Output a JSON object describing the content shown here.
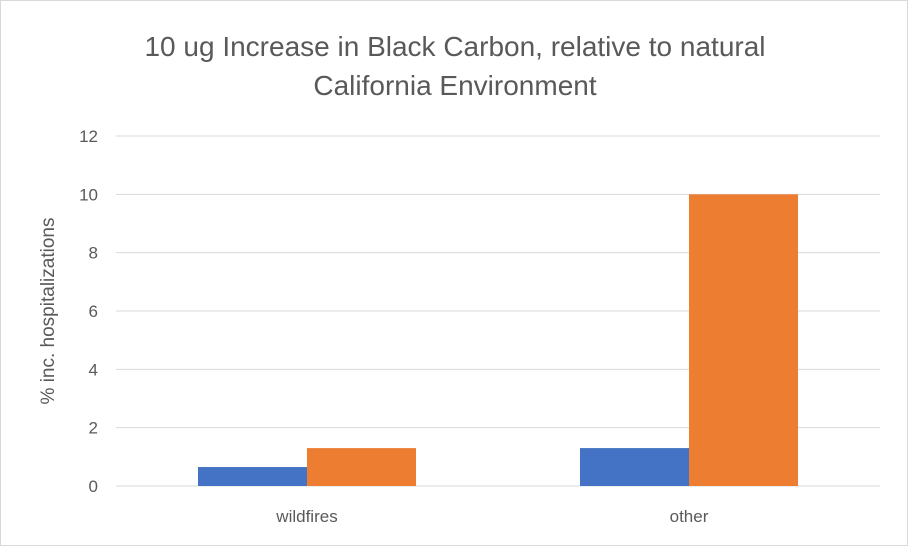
{
  "chart_data": {
    "type": "bar",
    "title_line1": "10 ug Increase in Black Carbon, relative to natural",
    "title_line2": "California Environment",
    "xlabel": "",
    "ylabel": "% inc. hospitalizations",
    "categories": [
      "wildfires",
      "other"
    ],
    "series": [
      {
        "color": "#4472c4",
        "values": [
          0.65,
          1.3
        ]
      },
      {
        "color": "#ed7d31",
        "values": [
          1.3,
          10.0
        ]
      }
    ],
    "ylim": [
      0,
      12
    ],
    "yticks": [
      0,
      2,
      4,
      6,
      8,
      10,
      12
    ],
    "grid": true,
    "legend": "none"
  }
}
